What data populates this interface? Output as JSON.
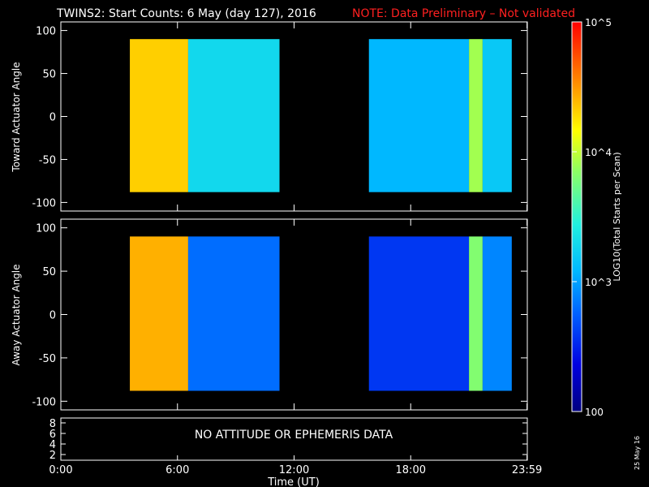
{
  "chart_data": {
    "type": "heatmap",
    "title": "TWINS2: Start Counts:  6 May (day 127), 2016",
    "note": "NOTE: Data Preliminary – Not validated",
    "xlabel": "Time (UT)",
    "x_ticks": [
      "0:00",
      "6:00",
      "12:00",
      "18:00",
      "23:59"
    ],
    "x_tick_hours": [
      0,
      6,
      12,
      18,
      23.983
    ],
    "xlim_hours": [
      0,
      24
    ],
    "panels": [
      {
        "ylabel": "Toward Actuator Angle",
        "ylim": [
          -110,
          110
        ],
        "y_ticks": [
          100,
          50,
          0,
          -50,
          -100
        ],
        "data_extent": {
          "angle_min": -88,
          "angle_max": 90
        },
        "data_intervals_hours": [
          [
            3.55,
            11.25
          ],
          [
            15.85,
            23.2
          ]
        ],
        "columns": [
          {
            "start": 3.55,
            "end": 6.55,
            "log10": 4.3
          },
          {
            "start": 6.55,
            "end": 11.25,
            "log10": 3.3
          },
          {
            "start": 15.85,
            "end": 21.0,
            "log10": 3.1
          },
          {
            "start": 21.0,
            "end": 21.7,
            "log10": 3.9
          },
          {
            "start": 21.7,
            "end": 23.2,
            "log10": 3.2
          }
        ]
      },
      {
        "ylabel": "Away Actuator Angle",
        "ylim": [
          -110,
          110
        ],
        "y_ticks": [
          100,
          50,
          0,
          -50,
          -100
        ],
        "data_extent": {
          "angle_min": -88,
          "angle_max": 90
        },
        "data_intervals_hours": [
          [
            3.55,
            11.25
          ],
          [
            15.85,
            23.2
          ]
        ],
        "columns": [
          {
            "start": 3.55,
            "end": 6.55,
            "log10": 4.4
          },
          {
            "start": 6.55,
            "end": 11.25,
            "log10": 2.8
          },
          {
            "start": 15.85,
            "end": 21.0,
            "log10": 2.6
          },
          {
            "start": 21.0,
            "end": 21.7,
            "log10": 3.8
          },
          {
            "start": 21.7,
            "end": 23.2,
            "log10": 2.9
          }
        ]
      }
    ],
    "bottom_panel": {
      "y_ticks": [
        "8",
        "6",
        "4",
        "2"
      ],
      "message": "NO ATTITUDE OR EPHEMERIS DATA"
    },
    "colorbar": {
      "label": "LOG10(Total Starts per Scan)",
      "scale": "log",
      "range": [
        100,
        100000
      ],
      "ticks": [
        "10^5",
        "10^4",
        "10^3",
        "100"
      ]
    },
    "date_stamp": "25 May 16",
    "colors": {
      "background": "#000000",
      "axes": "#ffffff",
      "note": "#ff2020"
    }
  }
}
